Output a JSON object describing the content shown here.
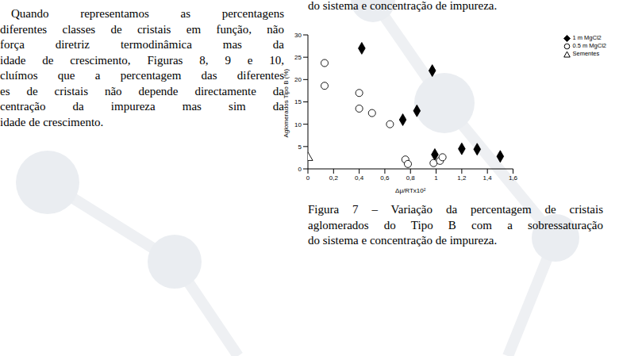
{
  "body_text": {
    "lines": [
      "Quando representamos as percentagens",
      "diferentes classes de cristais em função, não",
      "força diretriz termodinâmica mas da",
      "idade de crescimento, Figuras 8, 9 e 10,",
      "cluímos que a percentagem das diferentes",
      "es de cristais não depende directamente da",
      "centração da impureza mas sim da",
      "idade de crescimento."
    ]
  },
  "top_fragment": "do sistema e concentração de impureza.",
  "caption": {
    "lines": [
      "Figura 7 – Variação da percentagem de cristais",
      "aglomerados do Tipo B com a sobressaturação",
      "do sistema e concentração de impureza."
    ]
  },
  "chart_data": {
    "type": "scatter",
    "x_label": "Δμ/RTx10²",
    "y_label": "Aglomerados Tipo B (%)",
    "xlim": [
      0,
      1.6
    ],
    "xticks": [
      0,
      {
        "value": 0.2,
        "label": "0,2"
      },
      {
        "value": 0.4,
        "label": "0,4"
      },
      {
        "value": 0.6,
        "label": "0,6"
      },
      {
        "value": 0.8,
        "label": "0,8"
      },
      1,
      {
        "value": 1.2,
        "label": "1,2"
      },
      {
        "value": 1.4,
        "label": "1,4"
      },
      {
        "value": 1.6,
        "label": "1,6"
      }
    ],
    "ylim": [
      0,
      30
    ],
    "yticks": [
      0,
      5,
      10,
      15,
      20,
      25,
      30
    ],
    "grid": false,
    "legend": "top-right",
    "series": [
      {
        "name": "1 m MgCl2",
        "color": "#000000",
        "marker": "diamond",
        "x": [
          0.42,
          0.74,
          0.85,
          0.97,
          0.99,
          1.2,
          1.32,
          1.5
        ],
        "values": [
          27,
          11,
          13,
          22,
          3.2,
          4.5,
          4.4,
          2.8
        ]
      },
      {
        "name": "0.5 m MgCl2",
        "color": "#000000",
        "marker": "open_circle",
        "x": [
          0.13,
          0.13,
          0.4,
          0.4,
          0.5,
          0.64,
          0.76,
          0.78,
          0.98,
          1.03,
          1.05
        ],
        "values": [
          23.7,
          18.6,
          17,
          13.5,
          12.5,
          10,
          2.1,
          1.1,
          1.3,
          1.8,
          2.6
        ]
      },
      {
        "name": "Sementes",
        "color": "#000000",
        "marker": "open_triangle",
        "x": [
          0
        ],
        "values": [
          2.5
        ]
      }
    ]
  }
}
